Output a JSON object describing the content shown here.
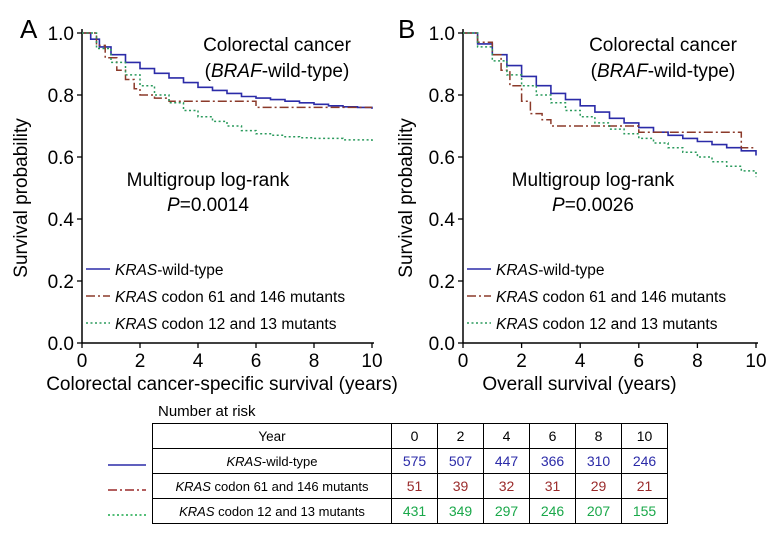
{
  "chart_data": [
    {
      "type": "line",
      "panel_letter": "A",
      "title": "Colorectal cancer",
      "subtitle_italic": "BRAF",
      "subtitle_rest": "-wild-type)",
      "subtitle_open": "(",
      "annotation_line1": "Multigroup log-rank",
      "annotation_p_italic": "P",
      "annotation_p_value": "=0.0014",
      "xlabel": "Colorectal cancer-specific survival (years)",
      "ylabel": "Survival probability",
      "xlim": [
        0,
        10
      ],
      "ylim": [
        0,
        1
      ],
      "xticks": [
        "0",
        "2",
        "4",
        "6",
        "8",
        "10"
      ],
      "yticks": [
        "0.0",
        "0.2",
        "0.4",
        "0.6",
        "0.8",
        "1.0"
      ],
      "legend_placement": "bottom-left",
      "series": [
        {
          "name_italic": "KRAS",
          "name_rest": "-wild-type",
          "style": "solid",
          "color": "#2b2ba8",
          "x": [
            0,
            0.3,
            0.6,
            1.0,
            1.5,
            2.0,
            2.5,
            3.0,
            3.5,
            4.0,
            4.5,
            5.0,
            5.5,
            6.0,
            6.5,
            7.0,
            7.5,
            8.0,
            8.5,
            9.0,
            9.5,
            10.0
          ],
          "y": [
            1.0,
            0.98,
            0.955,
            0.93,
            0.905,
            0.885,
            0.87,
            0.855,
            0.84,
            0.825,
            0.815,
            0.805,
            0.795,
            0.79,
            0.785,
            0.78,
            0.775,
            0.77,
            0.765,
            0.762,
            0.76,
            0.755
          ]
        },
        {
          "name_italic": "KRAS",
          "name_rest": " codon 61 and 146 mutants",
          "style": "dashdot",
          "color": "#8b3a2a",
          "x": [
            0,
            0.5,
            0.8,
            1.2,
            1.5,
            1.8,
            2.0,
            2.5,
            3.0,
            6.0,
            6.0,
            10.0
          ],
          "y": [
            1.0,
            0.96,
            0.92,
            0.88,
            0.85,
            0.82,
            0.8,
            0.79,
            0.78,
            0.78,
            0.76,
            0.76
          ]
        },
        {
          "name_italic": "KRAS",
          "name_rest": " codon 12 and 13 mutants",
          "style": "dotted",
          "color": "#2a9a5c",
          "x": [
            0,
            0.5,
            1.0,
            1.5,
            2.0,
            2.5,
            3.0,
            3.5,
            4.0,
            4.5,
            5.0,
            5.5,
            6.0,
            6.5,
            7.0,
            7.5,
            8.0,
            9.0,
            10.0
          ],
          "y": [
            1.0,
            0.95,
            0.905,
            0.865,
            0.83,
            0.8,
            0.775,
            0.75,
            0.73,
            0.715,
            0.7,
            0.685,
            0.675,
            0.67,
            0.665,
            0.662,
            0.66,
            0.655,
            0.65
          ]
        }
      ]
    },
    {
      "type": "line",
      "panel_letter": "B",
      "title": "Colorectal cancer",
      "subtitle_italic": "BRAF",
      "subtitle_rest": "-wild-type)",
      "subtitle_open": "(",
      "annotation_line1": "Multigroup log-rank",
      "annotation_p_italic": "P",
      "annotation_p_value": "=0.0026",
      "xlabel": "Overall survival (years)",
      "ylabel": "Survival probability",
      "xlim": [
        0,
        10
      ],
      "ylim": [
        0,
        1
      ],
      "xticks": [
        "0",
        "2",
        "4",
        "6",
        "8",
        "10"
      ],
      "yticks": [
        "0.0",
        "0.2",
        "0.4",
        "0.6",
        "0.8",
        "1.0"
      ],
      "legend_placement": "bottom-left",
      "series": [
        {
          "name_italic": "KRAS",
          "name_rest": "-wild-type",
          "style": "solid",
          "color": "#2b2ba8",
          "x": [
            0,
            0.5,
            1.0,
            1.5,
            2.0,
            2.5,
            3.0,
            3.5,
            4.0,
            4.5,
            5.0,
            5.5,
            6.0,
            6.5,
            7.0,
            7.5,
            8.0,
            8.5,
            9.0,
            9.5,
            10.0
          ],
          "y": [
            1.0,
            0.965,
            0.93,
            0.895,
            0.86,
            0.83,
            0.805,
            0.785,
            0.765,
            0.745,
            0.725,
            0.71,
            0.695,
            0.68,
            0.67,
            0.66,
            0.65,
            0.64,
            0.63,
            0.62,
            0.605
          ]
        },
        {
          "name_italic": "KRAS",
          "name_rest": " codon 61 and 146 mutants",
          "style": "dashdot",
          "color": "#8b3a2a",
          "x": [
            0,
            0.5,
            1.0,
            1.3,
            1.6,
            2.0,
            2.3,
            2.7,
            3.0,
            6.0,
            6.0,
            9.5,
            9.5,
            10.0
          ],
          "y": [
            1.0,
            0.97,
            0.93,
            0.88,
            0.83,
            0.78,
            0.74,
            0.72,
            0.7,
            0.7,
            0.68,
            0.68,
            0.63,
            0.63
          ]
        },
        {
          "name_italic": "KRAS",
          "name_rest": " codon 12 and 13 mutants",
          "style": "dotted",
          "color": "#2a9a5c",
          "x": [
            0,
            0.5,
            1.0,
            1.5,
            2.0,
            2.5,
            3.0,
            3.5,
            4.0,
            4.5,
            5.0,
            5.5,
            6.0,
            6.5,
            7.0,
            7.5,
            8.0,
            8.5,
            9.0,
            9.5,
            10.0
          ],
          "y": [
            1.0,
            0.955,
            0.91,
            0.865,
            0.83,
            0.8,
            0.775,
            0.75,
            0.73,
            0.71,
            0.69,
            0.675,
            0.66,
            0.645,
            0.63,
            0.615,
            0.6,
            0.585,
            0.57,
            0.555,
            0.535
          ]
        }
      ]
    }
  ],
  "risk_table": {
    "title": "Number at risk",
    "header_label": "Year",
    "years": [
      "0",
      "2",
      "4",
      "6",
      "8",
      "10"
    ],
    "rows": [
      {
        "label_italic": "KRAS",
        "label_rest": "-wild-type",
        "color": "#2b2ba8",
        "style": "solid",
        "values": [
          "575",
          "507",
          "447",
          "366",
          "310",
          "246"
        ]
      },
      {
        "label_italic": "KRAS",
        "label_rest": " codon 61 and 146 mutants",
        "color": "#9a2a2a",
        "style": "dashdot",
        "values": [
          "51",
          "39",
          "32",
          "31",
          "29",
          "21"
        ]
      },
      {
        "label_italic": "KRAS",
        "label_rest": " codon 12 and 13 mutants",
        "color": "#1aa84a",
        "style": "dotted",
        "values": [
          "431",
          "349",
          "297",
          "246",
          "207",
          "155"
        ]
      }
    ]
  }
}
